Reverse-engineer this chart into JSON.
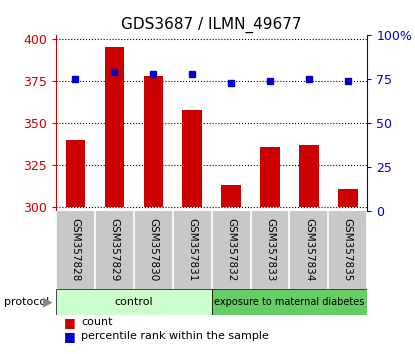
{
  "title": "GDS3687 / ILMN_49677",
  "samples": [
    "GSM357828",
    "GSM357829",
    "GSM357830",
    "GSM357831",
    "GSM357832",
    "GSM357833",
    "GSM357834",
    "GSM357835"
  ],
  "counts": [
    340,
    395,
    378,
    358,
    313,
    336,
    337,
    311
  ],
  "percentiles": [
    75,
    79,
    78,
    78,
    73,
    74,
    75,
    74
  ],
  "ylim_left": [
    298,
    402
  ],
  "ylim_right": [
    0,
    100
  ],
  "yticks_left": [
    300,
    325,
    350,
    375,
    400
  ],
  "yticks_right": [
    0,
    25,
    50,
    75,
    100
  ],
  "ytick_labels_right": [
    "0",
    "25",
    "50",
    "75",
    "100%"
  ],
  "bar_color": "#cc0000",
  "dot_color": "#0000cc",
  "control_color": "#ccffcc",
  "diabetes_color": "#66cc66",
  "control_label": "control",
  "diabetes_label": "exposure to maternal diabetes",
  "protocol_label": "protocol",
  "legend_count": "count",
  "legend_percentile": "percentile rank within the sample",
  "background_color": "#ffffff",
  "tick_area_color": "#c8c8c8"
}
